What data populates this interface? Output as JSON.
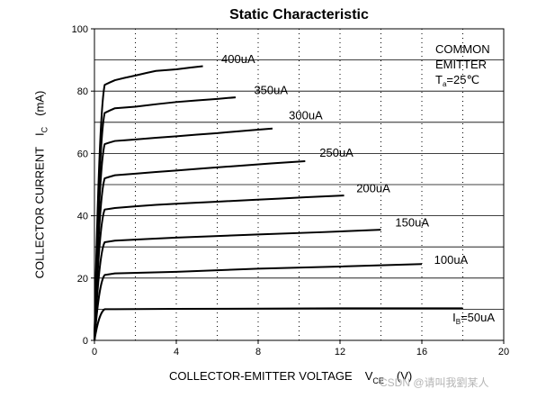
{
  "chart_data": {
    "type": "line",
    "title": "Static Characteristic",
    "xlabel": {
      "main": "COLLECTOR-EMITTER VOLTAGE",
      "symbol": "V",
      "symbol_sub": "CE",
      "unit": "(V)"
    },
    "ylabel": {
      "main": "COLLECTOR CURRENT",
      "symbol": "I",
      "symbol_sub": "C",
      "unit": "(mA)"
    },
    "xlim": [
      0,
      20
    ],
    "ylim": [
      0,
      100
    ],
    "x_ticks": [
      0,
      4,
      8,
      12,
      16,
      20
    ],
    "y_ticks": [
      0,
      20,
      40,
      60,
      80,
      100
    ],
    "grid": true,
    "annotation": {
      "line1": "COMMON",
      "line2": "EMITTER",
      "line3_symbol": "T",
      "line3_sub": "a",
      "line3_rest": "=25℃"
    },
    "series": [
      {
        "name": "400uA",
        "label_parts": [
          "400uA"
        ],
        "label_at": [
          6.2,
          89
        ],
        "knee": [
          0.1,
          0.25,
          0.4
        ],
        "x": [
          0,
          0.5,
          1,
          2,
          3,
          4,
          5.3
        ],
        "y": [
          0,
          82,
          83.5,
          85,
          86.5,
          87,
          88
        ]
      },
      {
        "name": "350uA",
        "label_parts": [
          "350uA"
        ],
        "label_at": [
          7.8,
          79
        ],
        "knee": [
          0.1,
          0.25,
          0.4
        ],
        "x": [
          0,
          0.5,
          1,
          2,
          4,
          6,
          6.9
        ],
        "y": [
          0,
          73,
          74.5,
          75,
          76.5,
          77.5,
          78
        ]
      },
      {
        "name": "300uA",
        "label_parts": [
          "300uA"
        ],
        "label_at": [
          9.5,
          71
        ],
        "knee": [
          0.1,
          0.25,
          0.4
        ],
        "x": [
          0,
          0.5,
          1,
          2,
          4,
          6,
          8.7
        ],
        "y": [
          0,
          63,
          64,
          64.5,
          65.5,
          66.5,
          68
        ]
      },
      {
        "name": "250uA",
        "label_parts": [
          "250uA"
        ],
        "label_at": [
          11,
          59
        ],
        "knee": [
          0.1,
          0.25,
          0.4
        ],
        "x": [
          0,
          0.5,
          1,
          2,
          4,
          7,
          10.3
        ],
        "y": [
          0,
          52,
          53,
          53.5,
          54.5,
          56,
          57.5
        ]
      },
      {
        "name": "200uA",
        "label_parts": [
          "200uA"
        ],
        "label_at": [
          12.8,
          47.5
        ],
        "knee": [
          0.1,
          0.25,
          0.4
        ],
        "x": [
          0,
          0.5,
          1,
          3,
          6,
          9,
          12.2
        ],
        "y": [
          0,
          42,
          42.5,
          43.5,
          44.5,
          45.5,
          46.5
        ]
      },
      {
        "name": "150uA",
        "label_parts": [
          "150uA"
        ],
        "label_at": [
          14.7,
          36.5
        ],
        "knee": [
          0.1,
          0.25,
          0.4
        ],
        "x": [
          0,
          0.5,
          1,
          4,
          8,
          11,
          14
        ],
        "y": [
          0,
          31.5,
          32,
          33,
          34,
          34.7,
          35.5
        ]
      },
      {
        "name": "100uA",
        "label_parts": [
          "100uA"
        ],
        "label_at": [
          16.6,
          24.5
        ],
        "knee": [
          0.1,
          0.25,
          0.4
        ],
        "x": [
          0,
          0.5,
          1,
          4,
          8,
          12,
          16
        ],
        "y": [
          0,
          21,
          21.5,
          22,
          23,
          23.7,
          24.5
        ]
      },
      {
        "name": "I_B=50uA",
        "label_parts": [
          "I",
          "B",
          "=50uA"
        ],
        "label_at": [
          17.5,
          6
        ],
        "knee": [
          0.1,
          0.25,
          0.4
        ],
        "x": [
          0,
          0.5,
          1,
          4,
          8,
          12,
          18
        ],
        "y": [
          0,
          10,
          10,
          10.1,
          10.2,
          10.3,
          10.3
        ]
      }
    ]
  },
  "watermark": "CSDN @请叫我劉某人"
}
